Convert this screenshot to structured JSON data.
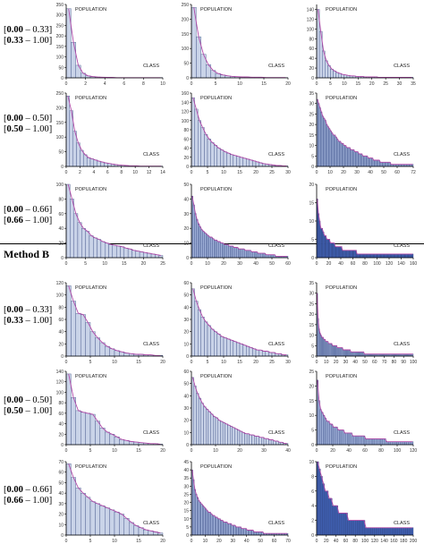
{
  "method_b_title": "Method B",
  "row_labels": [
    {
      "line1_bold": "0.00",
      "line1_rest": " – 0.33]",
      "line2_bold": "0.33",
      "line2_rest": " – 1.00]"
    },
    {
      "line1_bold": "0.00",
      "line1_rest": " – 0.50]",
      "line2_bold": "0.50",
      "line2_rest": " – 1.00]"
    },
    {
      "line1_bold": "0.00",
      "line1_rest": " – 0.66]",
      "line2_bold": "0.66",
      "line2_rest": " – 1.00]"
    }
  ],
  "colors": {
    "bar_light": "#c9d3e8",
    "bar_mid": "#9fb0d8",
    "bar_dark": "#3f5fb0",
    "bar_edge": "#2c3f7a",
    "curve": "#b04aa8",
    "axis": "#000000"
  },
  "chart_data": [
    {
      "type": "bar",
      "method": "A",
      "row": 1,
      "col": 1,
      "annotation_y": "POPULATION",
      "annotation_x": "CLASS",
      "xlim": [
        0,
        10
      ],
      "xticks": [
        0,
        2,
        4,
        6,
        8,
        10
      ],
      "ylim": [
        0,
        350
      ],
      "yticks": [
        0,
        50,
        100,
        150,
        200,
        250,
        300,
        350
      ],
      "values": [
        330,
        170,
        60,
        22,
        10,
        6,
        4,
        3,
        2,
        2,
        1,
        1,
        1,
        1,
        1,
        1,
        1,
        1,
        1,
        1
      ],
      "bar_width": 0.5,
      "style": "light"
    },
    {
      "type": "bar",
      "method": "A",
      "row": 1,
      "col": 2,
      "annotation_y": "POPULATION",
      "annotation_x": "CLASS",
      "xlim": [
        0,
        20
      ],
      "xticks": [
        0,
        5,
        10,
        15,
        20
      ],
      "ylim": [
        0,
        250
      ],
      "yticks": [
        0,
        50,
        100,
        150,
        200,
        250
      ],
      "values": [
        240,
        140,
        80,
        45,
        25,
        15,
        10,
        7,
        5,
        4,
        3,
        3,
        2,
        2,
        2,
        1,
        1,
        1,
        1,
        1
      ],
      "bar_width": 1,
      "style": "light"
    },
    {
      "type": "bar",
      "method": "A",
      "row": 1,
      "col": 3,
      "annotation_y": "POPULATION",
      "annotation_x": "CLASS",
      "xlim": [
        0,
        35
      ],
      "xticks": [
        0,
        5,
        10,
        15,
        20,
        25,
        30,
        35
      ],
      "ylim": [
        0,
        150
      ],
      "yticks": [
        0,
        20,
        40,
        60,
        80,
        100,
        120,
        140
      ],
      "values": [
        140,
        95,
        55,
        35,
        25,
        18,
        14,
        11,
        9,
        7,
        6,
        5,
        4,
        4,
        3,
        3,
        3,
        2,
        2,
        2,
        2,
        2,
        1,
        1,
        1,
        1,
        1,
        1,
        1,
        1,
        1,
        1,
        1,
        1,
        1
      ],
      "bar_width": 1,
      "style": "light"
    },
    {
      "type": "bar",
      "method": "A",
      "row": 2,
      "col": 1,
      "annotation_y": "POPULATION",
      "annotation_x": "CLASS",
      "xlim": [
        0,
        14
      ],
      "xticks": [
        0,
        2,
        4,
        6,
        8,
        10,
        12,
        14
      ],
      "ylim": [
        0,
        250
      ],
      "yticks": [
        0,
        50,
        100,
        150,
        200,
        250
      ],
      "values": [
        240,
        190,
        120,
        80,
        55,
        40,
        30,
        26,
        22,
        18,
        15,
        12,
        10,
        8,
        6,
        5,
        4,
        3,
        2,
        2,
        2,
        1,
        1,
        1,
        1,
        1,
        1,
        1
      ],
      "bar_width": 0.5,
      "style": "light"
    },
    {
      "type": "bar",
      "method": "A",
      "row": 2,
      "col": 2,
      "annotation_y": "POPULATION",
      "annotation_x": "CLASS",
      "xlim": [
        0,
        30
      ],
      "xticks": [
        0,
        5,
        10,
        15,
        20,
        25,
        30
      ],
      "ylim": [
        0,
        160
      ],
      "yticks": [
        0,
        20,
        40,
        60,
        80,
        100,
        120,
        140,
        160
      ],
      "values": [
        150,
        125,
        100,
        85,
        70,
        60,
        52,
        46,
        40,
        36,
        32,
        29,
        26,
        24,
        22,
        20,
        18,
        16,
        14,
        12,
        10,
        8,
        6,
        5,
        4,
        3,
        2,
        2,
        1,
        1
      ],
      "bar_width": 1,
      "style": "light"
    },
    {
      "type": "bar",
      "method": "A",
      "row": 2,
      "col": 3,
      "annotation_y": "POPULATION",
      "annotation_x": "CLASS",
      "xlim": [
        0,
        72
      ],
      "xticks": [
        0,
        10,
        20,
        30,
        40,
        50,
        60,
        72
      ],
      "ylim": [
        0,
        35
      ],
      "yticks": [
        0,
        5,
        10,
        15,
        20,
        25,
        30,
        35
      ],
      "values": [
        32,
        30,
        28,
        26,
        24,
        23,
        22,
        20,
        19,
        18,
        17,
        16,
        15,
        15,
        14,
        13,
        12,
        12,
        11,
        11,
        10,
        10,
        9,
        9,
        9,
        8,
        8,
        8,
        7,
        7,
        7,
        6,
        6,
        6,
        5,
        5,
        5,
        5,
        4,
        4,
        4,
        4,
        3,
        3,
        3,
        3,
        3,
        2,
        2,
        2,
        2,
        2,
        2,
        2,
        2,
        1,
        1,
        1,
        1,
        1,
        1,
        1,
        1,
        1,
        1,
        1,
        1,
        1,
        1,
        1,
        1,
        1
      ],
      "bar_width": 1,
      "style": "mid"
    },
    {
      "type": "bar",
      "method": "A",
      "row": 3,
      "col": 1,
      "annotation_y": "POPULATION",
      "annotation_x": "CLASS",
      "xlim": [
        0,
        25
      ],
      "xticks": [
        0,
        5,
        10,
        15,
        20,
        25
      ],
      "ylim": [
        0,
        100
      ],
      "yticks": [
        0,
        20,
        40,
        60,
        80,
        100
      ],
      "values": [
        100,
        80,
        60,
        48,
        40,
        36,
        30,
        27,
        25,
        22,
        20,
        18,
        17,
        16,
        15,
        13,
        12,
        10,
        9,
        8,
        7,
        6,
        5,
        4,
        3
      ],
      "bar_width": 1,
      "style": "light"
    },
    {
      "type": "bar",
      "method": "A",
      "row": 3,
      "col": 2,
      "annotation_y": "POPULATION",
      "annotation_x": "CLASS",
      "xlim": [
        0,
        60
      ],
      "xticks": [
        0,
        10,
        20,
        30,
        40,
        50,
        60
      ],
      "ylim": [
        0,
        50
      ],
      "yticks": [
        0,
        10,
        20,
        30,
        40,
        50
      ],
      "values": [
        42,
        36,
        30,
        26,
        23,
        21,
        19,
        18,
        17,
        16,
        15,
        14,
        14,
        13,
        12,
        12,
        11,
        11,
        10,
        10,
        9,
        9,
        9,
        8,
        8,
        8,
        7,
        7,
        7,
        6,
        6,
        6,
        6,
        5,
        5,
        5,
        5,
        4,
        4,
        4,
        4,
        3,
        3,
        3,
        3,
        3,
        2,
        2,
        2,
        2,
        2,
        2,
        1,
        1,
        1,
        1,
        1,
        1,
        1,
        1
      ],
      "bar_width": 1,
      "style": "mid"
    },
    {
      "type": "bar",
      "method": "A",
      "row": 3,
      "col": 3,
      "annotation_y": "POPULATION",
      "annotation_x": "CLASS",
      "xlim": [
        0,
        160
      ],
      "xticks": [
        0,
        20,
        40,
        60,
        80,
        100,
        120,
        140,
        160
      ],
      "ylim": [
        0,
        20
      ],
      "yticks": [
        0,
        5,
        10,
        15,
        20
      ],
      "values": [
        16,
        12,
        10,
        8,
        8,
        7,
        6,
        6,
        5,
        5,
        5,
        4,
        4,
        4,
        4,
        3,
        3,
        3,
        3,
        3,
        3,
        2,
        2,
        2,
        2,
        2,
        2,
        2,
        2,
        2,
        2,
        2,
        2,
        1,
        1,
        1,
        1,
        1,
        1,
        1,
        1,
        1,
        1,
        1,
        1,
        1,
        1,
        1,
        1,
        1,
        1,
        1,
        1,
        1,
        1,
        1,
        1,
        1,
        1,
        1,
        1,
        1,
        1,
        1,
        1,
        1,
        1,
        1,
        1,
        1,
        1,
        1,
        1,
        1,
        1,
        1,
        1,
        1,
        1,
        1
      ],
      "bar_width": 2,
      "style": "dark"
    },
    {
      "type": "bar",
      "method": "B",
      "row": 1,
      "col": 1,
      "annotation_y": "POPULATION",
      "annotation_x": "CLASS",
      "xlim": [
        0,
        20
      ],
      "xticks": [
        0,
        5,
        10,
        15,
        20
      ],
      "ylim": [
        0,
        120
      ],
      "yticks": [
        0,
        20,
        40,
        60,
        80,
        100,
        120
      ],
      "values": [
        115,
        90,
        70,
        68,
        55,
        40,
        30,
        22,
        16,
        12,
        9,
        7,
        5,
        4,
        3,
        3,
        2,
        2,
        1,
        1
      ],
      "bar_width": 1,
      "style": "light"
    },
    {
      "type": "bar",
      "method": "B",
      "row": 1,
      "col": 2,
      "annotation_y": "POPULATION",
      "annotation_x": "CLASS",
      "xlim": [
        0,
        30
      ],
      "xticks": [
        0,
        5,
        10,
        15,
        20,
        25,
        30
      ],
      "ylim": [
        0,
        60
      ],
      "yticks": [
        0,
        10,
        20,
        30,
        40,
        50,
        60
      ],
      "values": [
        55,
        45,
        38,
        32,
        28,
        25,
        22,
        20,
        18,
        16,
        15,
        14,
        13,
        12,
        11,
        10,
        9,
        8,
        7,
        6,
        5,
        5,
        4,
        4,
        3,
        3,
        2,
        2,
        1,
        1
      ],
      "bar_width": 1,
      "style": "light"
    },
    {
      "type": "bar",
      "method": "B",
      "row": 1,
      "col": 3,
      "annotation_y": "POPULATION",
      "annotation_x": "CLASS",
      "xlim": [
        0,
        100
      ],
      "xticks": [
        0,
        10,
        20,
        30,
        40,
        50,
        60,
        70,
        80,
        90,
        100
      ],
      "ylim": [
        0,
        35
      ],
      "yticks": [
        0,
        5,
        10,
        15,
        20,
        25,
        30,
        35
      ],
      "values": [
        30,
        18,
        13,
        11,
        10,
        9,
        9,
        8,
        8,
        7,
        7,
        7,
        6,
        6,
        6,
        6,
        5,
        5,
        5,
        5,
        5,
        4,
        4,
        4,
        4,
        4,
        4,
        3,
        3,
        3,
        3,
        3,
        3,
        3,
        3,
        2,
        2,
        2,
        2,
        2,
        2,
        2,
        2,
        2,
        2,
        2,
        2,
        2,
        2,
        1,
        1,
        1,
        1,
        1,
        1,
        1,
        1,
        1,
        1,
        1,
        1,
        1,
        1,
        1,
        1,
        1,
        1,
        1,
        1,
        1,
        1,
        1,
        1,
        1,
        1,
        1,
        1,
        1,
        1,
        1,
        1,
        1,
        1,
        1,
        1,
        1,
        1,
        1,
        1,
        1,
        1,
        1,
        1,
        1,
        1,
        1,
        1,
        1,
        1,
        1
      ],
      "bar_width": 1,
      "style": "mid"
    },
    {
      "type": "bar",
      "method": "B",
      "row": 2,
      "col": 1,
      "annotation_y": "POPULATION",
      "annotation_x": "CLASS",
      "xlim": [
        0,
        20
      ],
      "xticks": [
        0,
        5,
        10,
        15,
        20
      ],
      "ylim": [
        0,
        140
      ],
      "yticks": [
        0,
        20,
        40,
        60,
        80,
        100,
        120,
        140
      ],
      "values": [
        135,
        90,
        65,
        62,
        60,
        58,
        45,
        32,
        24,
        20,
        15,
        10,
        8,
        6,
        5,
        4,
        3,
        2,
        2,
        1
      ],
      "bar_width": 1,
      "style": "light"
    },
    {
      "type": "bar",
      "method": "B",
      "row": 2,
      "col": 2,
      "annotation_y": "POPULATION",
      "annotation_x": "CLASS",
      "xlim": [
        0,
        40
      ],
      "xticks": [
        0,
        10,
        20,
        30,
        40
      ],
      "ylim": [
        0,
        60
      ],
      "yticks": [
        0,
        10,
        20,
        30,
        40,
        50,
        60
      ],
      "values": [
        55,
        48,
        42,
        38,
        34,
        31,
        29,
        27,
        25,
        23,
        22,
        20,
        19,
        18,
        17,
        16,
        15,
        14,
        13,
        12,
        11,
        10,
        9,
        9,
        8,
        8,
        7,
        7,
        6,
        6,
        5,
        5,
        4,
        4,
        3,
        3,
        2,
        2,
        1,
        1
      ],
      "bar_width": 1,
      "style": "light"
    },
    {
      "type": "bar",
      "method": "B",
      "row": 2,
      "col": 3,
      "annotation_y": "POPULATION",
      "annotation_x": "CLASS",
      "xlim": [
        0,
        120
      ],
      "xticks": [
        0,
        20,
        40,
        60,
        80,
        100,
        120
      ],
      "ylim": [
        0,
        25
      ],
      "yticks": [
        0,
        5,
        10,
        15,
        20,
        25
      ],
      "values": [
        22,
        15,
        12,
        11,
        10,
        9,
        8,
        8,
        7,
        7,
        6,
        6,
        6,
        5,
        5,
        5,
        5,
        4,
        4,
        4,
        4,
        4,
        3,
        3,
        3,
        3,
        3,
        3,
        3,
        3,
        2,
        2,
        2,
        2,
        2,
        2,
        2,
        2,
        2,
        2,
        2,
        2,
        2,
        1,
        1,
        1,
        1,
        1,
        1,
        1,
        1,
        1,
        1,
        1,
        1,
        1,
        1,
        1,
        1,
        1
      ],
      "bar_width": 2,
      "style": "mid"
    },
    {
      "type": "bar",
      "method": "B",
      "row": 3,
      "col": 1,
      "annotation_y": "POPULATION",
      "annotation_x": "CLASS",
      "xlim": [
        0,
        20
      ],
      "xticks": [
        0,
        5,
        10,
        15,
        20
      ],
      "ylim": [
        0,
        70
      ],
      "yticks": [
        0,
        10,
        20,
        30,
        40,
        50,
        60,
        70
      ],
      "values": [
        68,
        55,
        45,
        40,
        36,
        32,
        30,
        28,
        26,
        24,
        22,
        20,
        16,
        12,
        9,
        7,
        5,
        4,
        3,
        2
      ],
      "bar_width": 1,
      "style": "light"
    },
    {
      "type": "bar",
      "method": "B",
      "row": 3,
      "col": 2,
      "annotation_y": "POPULATION",
      "annotation_x": "CLASS",
      "xlim": [
        0,
        70
      ],
      "xticks": [
        0,
        10,
        20,
        30,
        40,
        50,
        60,
        70
      ],
      "ylim": [
        0,
        45
      ],
      "yticks": [
        0,
        5,
        10,
        15,
        20,
        25,
        30,
        35,
        40,
        45
      ],
      "values": [
        40,
        34,
        28,
        25,
        23,
        21,
        20,
        19,
        18,
        17,
        16,
        15,
        14,
        14,
        13,
        12,
        12,
        11,
        11,
        10,
        10,
        9,
        9,
        8,
        8,
        8,
        7,
        7,
        7,
        6,
        6,
        6,
        5,
        5,
        5,
        5,
        4,
        4,
        4,
        4,
        3,
        3,
        3,
        3,
        3,
        2,
        2,
        2,
        2,
        2,
        2,
        2,
        1,
        1,
        1,
        1,
        1,
        1,
        1,
        1,
        1,
        1,
        1,
        1,
        1,
        1,
        1,
        1,
        1,
        1
      ],
      "bar_width": 1,
      "style": "mid"
    },
    {
      "type": "bar",
      "method": "B",
      "row": 3,
      "col": 3,
      "annotation_y": "POPULATION",
      "annotation_x": "CLASS",
      "xlim": [
        0,
        200
      ],
      "xticks": [
        0,
        20,
        40,
        60,
        80,
        100,
        120,
        140,
        160,
        180,
        200
      ],
      "ylim": [
        0,
        10
      ],
      "yticks": [
        0,
        2,
        4,
        6,
        8,
        10
      ],
      "values": [
        10,
        9,
        8,
        7,
        6,
        6,
        5,
        5,
        4,
        4,
        4,
        3,
        3,
        3,
        3,
        3,
        2,
        2,
        2,
        2,
        2,
        2,
        2,
        2,
        2,
        1,
        1,
        1,
        1,
        1,
        1,
        1,
        1,
        1,
        1,
        1,
        1,
        1,
        1,
        1,
        1,
        1,
        1,
        1,
        1,
        1,
        1,
        1,
        1,
        1
      ],
      "bar_width": 4,
      "style": "dark"
    }
  ]
}
